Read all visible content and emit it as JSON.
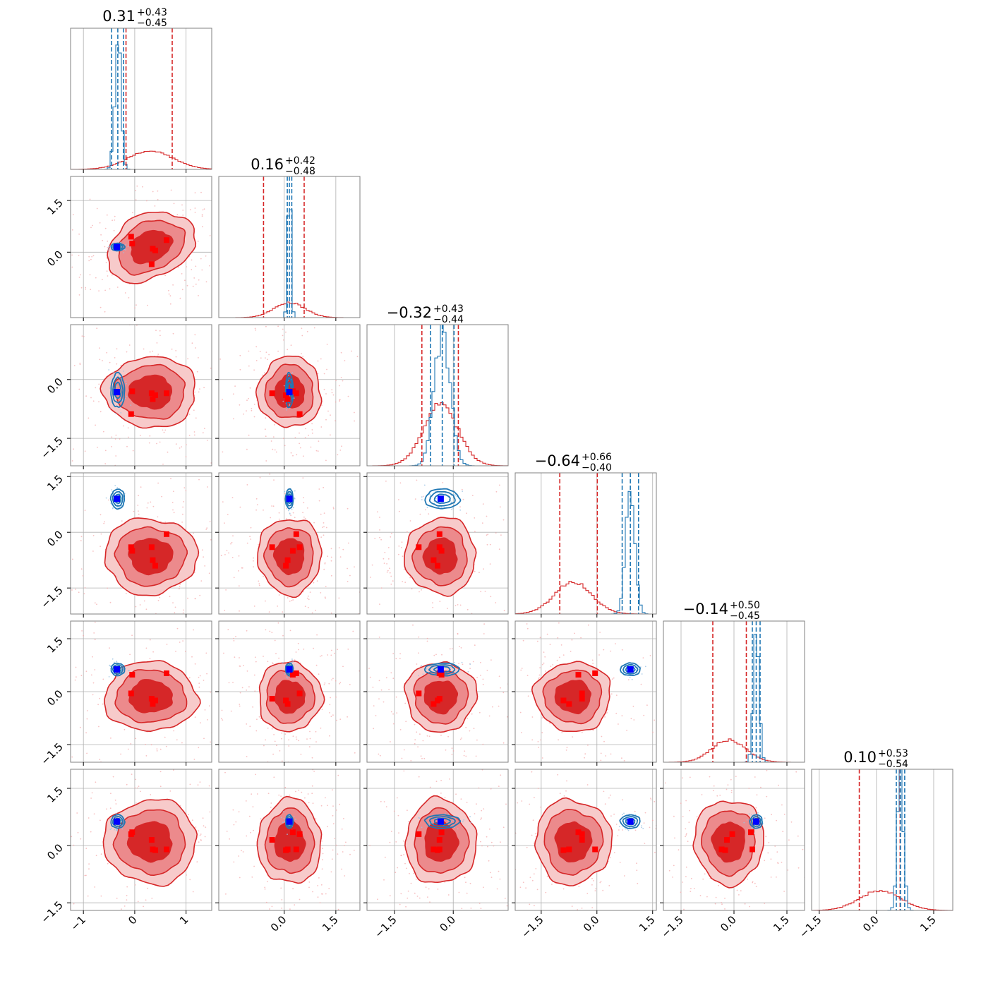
{
  "chart_data": {
    "type": "corner",
    "n_params": 6,
    "grid": true,
    "colors": {
      "red": "#d62728",
      "red_mid": "#ec8a8c",
      "red_light": "#f7caca",
      "red_scatter": "#f4a6a8",
      "blue": "#1f77b4",
      "blue_scatter": "#9cc3e4",
      "marker_red": "#ff0000",
      "marker_blue": "#0000ff",
      "grid": "#b0b0b0",
      "frame": "#808080"
    },
    "ranges": [
      [
        -1.25,
        1.5
      ],
      [
        -1.9,
        2.2
      ],
      [
        -2.2,
        1.4
      ],
      [
        -2.2,
        1.6
      ],
      [
        -2.0,
        2.0
      ],
      [
        -1.7,
        2.0
      ]
    ],
    "ticks": [
      [
        -1,
        0,
        1
      ],
      [
        0,
        1.5
      ],
      [
        -1.5,
        0.0
      ],
      [
        -1.5,
        0.0,
        1.5
      ],
      [
        -1.5,
        0.0,
        1.5
      ],
      [
        -1.5,
        0.0,
        1.5
      ]
    ],
    "bottom_tick_labels": [
      [
        "−1",
        "0",
        "1"
      ],
      [
        "0.0",
        "1.5"
      ],
      [
        "−1.5",
        "0.0"
      ],
      [
        "−1.5",
        "0.0",
        "1.5"
      ],
      [
        "−1.5",
        "0.0",
        "1.5"
      ],
      [
        "−1.5",
        "0.0",
        "1.5"
      ]
    ],
    "left_ticks": {
      "1": [
        0.0,
        1.5
      ],
      "2": [
        -1.5,
        0.0
      ],
      "3": [
        -1.5,
        0.0,
        1.5
      ],
      "4": [
        -1.5,
        0.0,
        1.5
      ],
      "5": [
        -1.5,
        0.0,
        1.5
      ]
    },
    "left_tick_labels": {
      "1": [
        "0.0",
        "1.5"
      ],
      "2": [
        "−1.5",
        "0.0"
      ],
      "3": [
        "−1.5",
        "0.0",
        "1.5"
      ],
      "4": [
        "−1.5",
        "0.0",
        "1.5"
      ],
      "5": [
        "−1.5",
        "0.0",
        "1.5"
      ]
    },
    "titles": [
      {
        "value": "0.31",
        "plus": "+0.43",
        "minus": "−0.45"
      },
      {
        "value": "0.16",
        "plus": "+0.42",
        "minus": "−0.48"
      },
      {
        "value": "−0.32",
        "plus": "+0.43",
        "minus": "−0.44"
      },
      {
        "value": "−0.64",
        "plus": "+0.66",
        "minus": "−0.40"
      },
      {
        "value": "−0.14",
        "plus": "+0.50",
        "minus": "−0.45"
      },
      {
        "value": "0.10",
        "plus": "+0.53",
        "minus": "−0.54"
      }
    ],
    "red_posterior": {
      "mean": [
        0.31,
        0.16,
        -0.32,
        -0.64,
        -0.14,
        0.1
      ],
      "sigma": [
        0.44,
        0.45,
        0.44,
        0.5,
        0.48,
        0.54
      ],
      "quantiles": [
        [
          -0.17,
          0.73
        ],
        [
          -0.6,
          0.58
        ],
        [
          -0.8,
          0.13
        ],
        [
          -1.0,
          0.01
        ],
        [
          -0.6,
          0.35
        ],
        [
          -0.45,
          0.62
        ]
      ]
    },
    "blue_posterior": {
      "mean": [
        -0.33,
        0.15,
        -0.28,
        0.9,
        0.63,
        0.63
      ],
      "sigma": [
        0.06,
        0.05,
        0.2,
        0.12,
        0.08,
        0.08
      ],
      "quantiles": [
        [
          -0.45,
          -0.22
        ],
        [
          0.09,
          0.22
        ],
        [
          -0.58,
          0.02
        ],
        [
          0.68,
          1.12
        ],
        [
          0.52,
          0.74
        ],
        [
          0.52,
          0.74
        ]
      ]
    },
    "red_markers": [
      [
        -0.05,
        0.25,
        -0.3,
        -0.5,
        0.48,
        0.35
      ],
      [
        0.33,
        -0.35,
        -0.35,
        -0.4,
        -0.2,
        0.15
      ],
      [
        0.62,
        0.35,
        -0.35,
        -0.05,
        0.52,
        -0.1
      ],
      [
        0.4,
        0.05,
        -0.4,
        -0.9,
        -0.25,
        -0.12
      ],
      [
        -0.07,
        0.45,
        -0.88,
        -0.4,
        -0.05,
        0.3
      ],
      [
        0.35,
        0.1,
        -0.5,
        -0.75,
        -0.35,
        -0.1
      ]
    ],
    "blue_marker": [
      -0.35,
      0.15,
      -0.32,
      0.9,
      0.63,
      0.63
    ]
  }
}
